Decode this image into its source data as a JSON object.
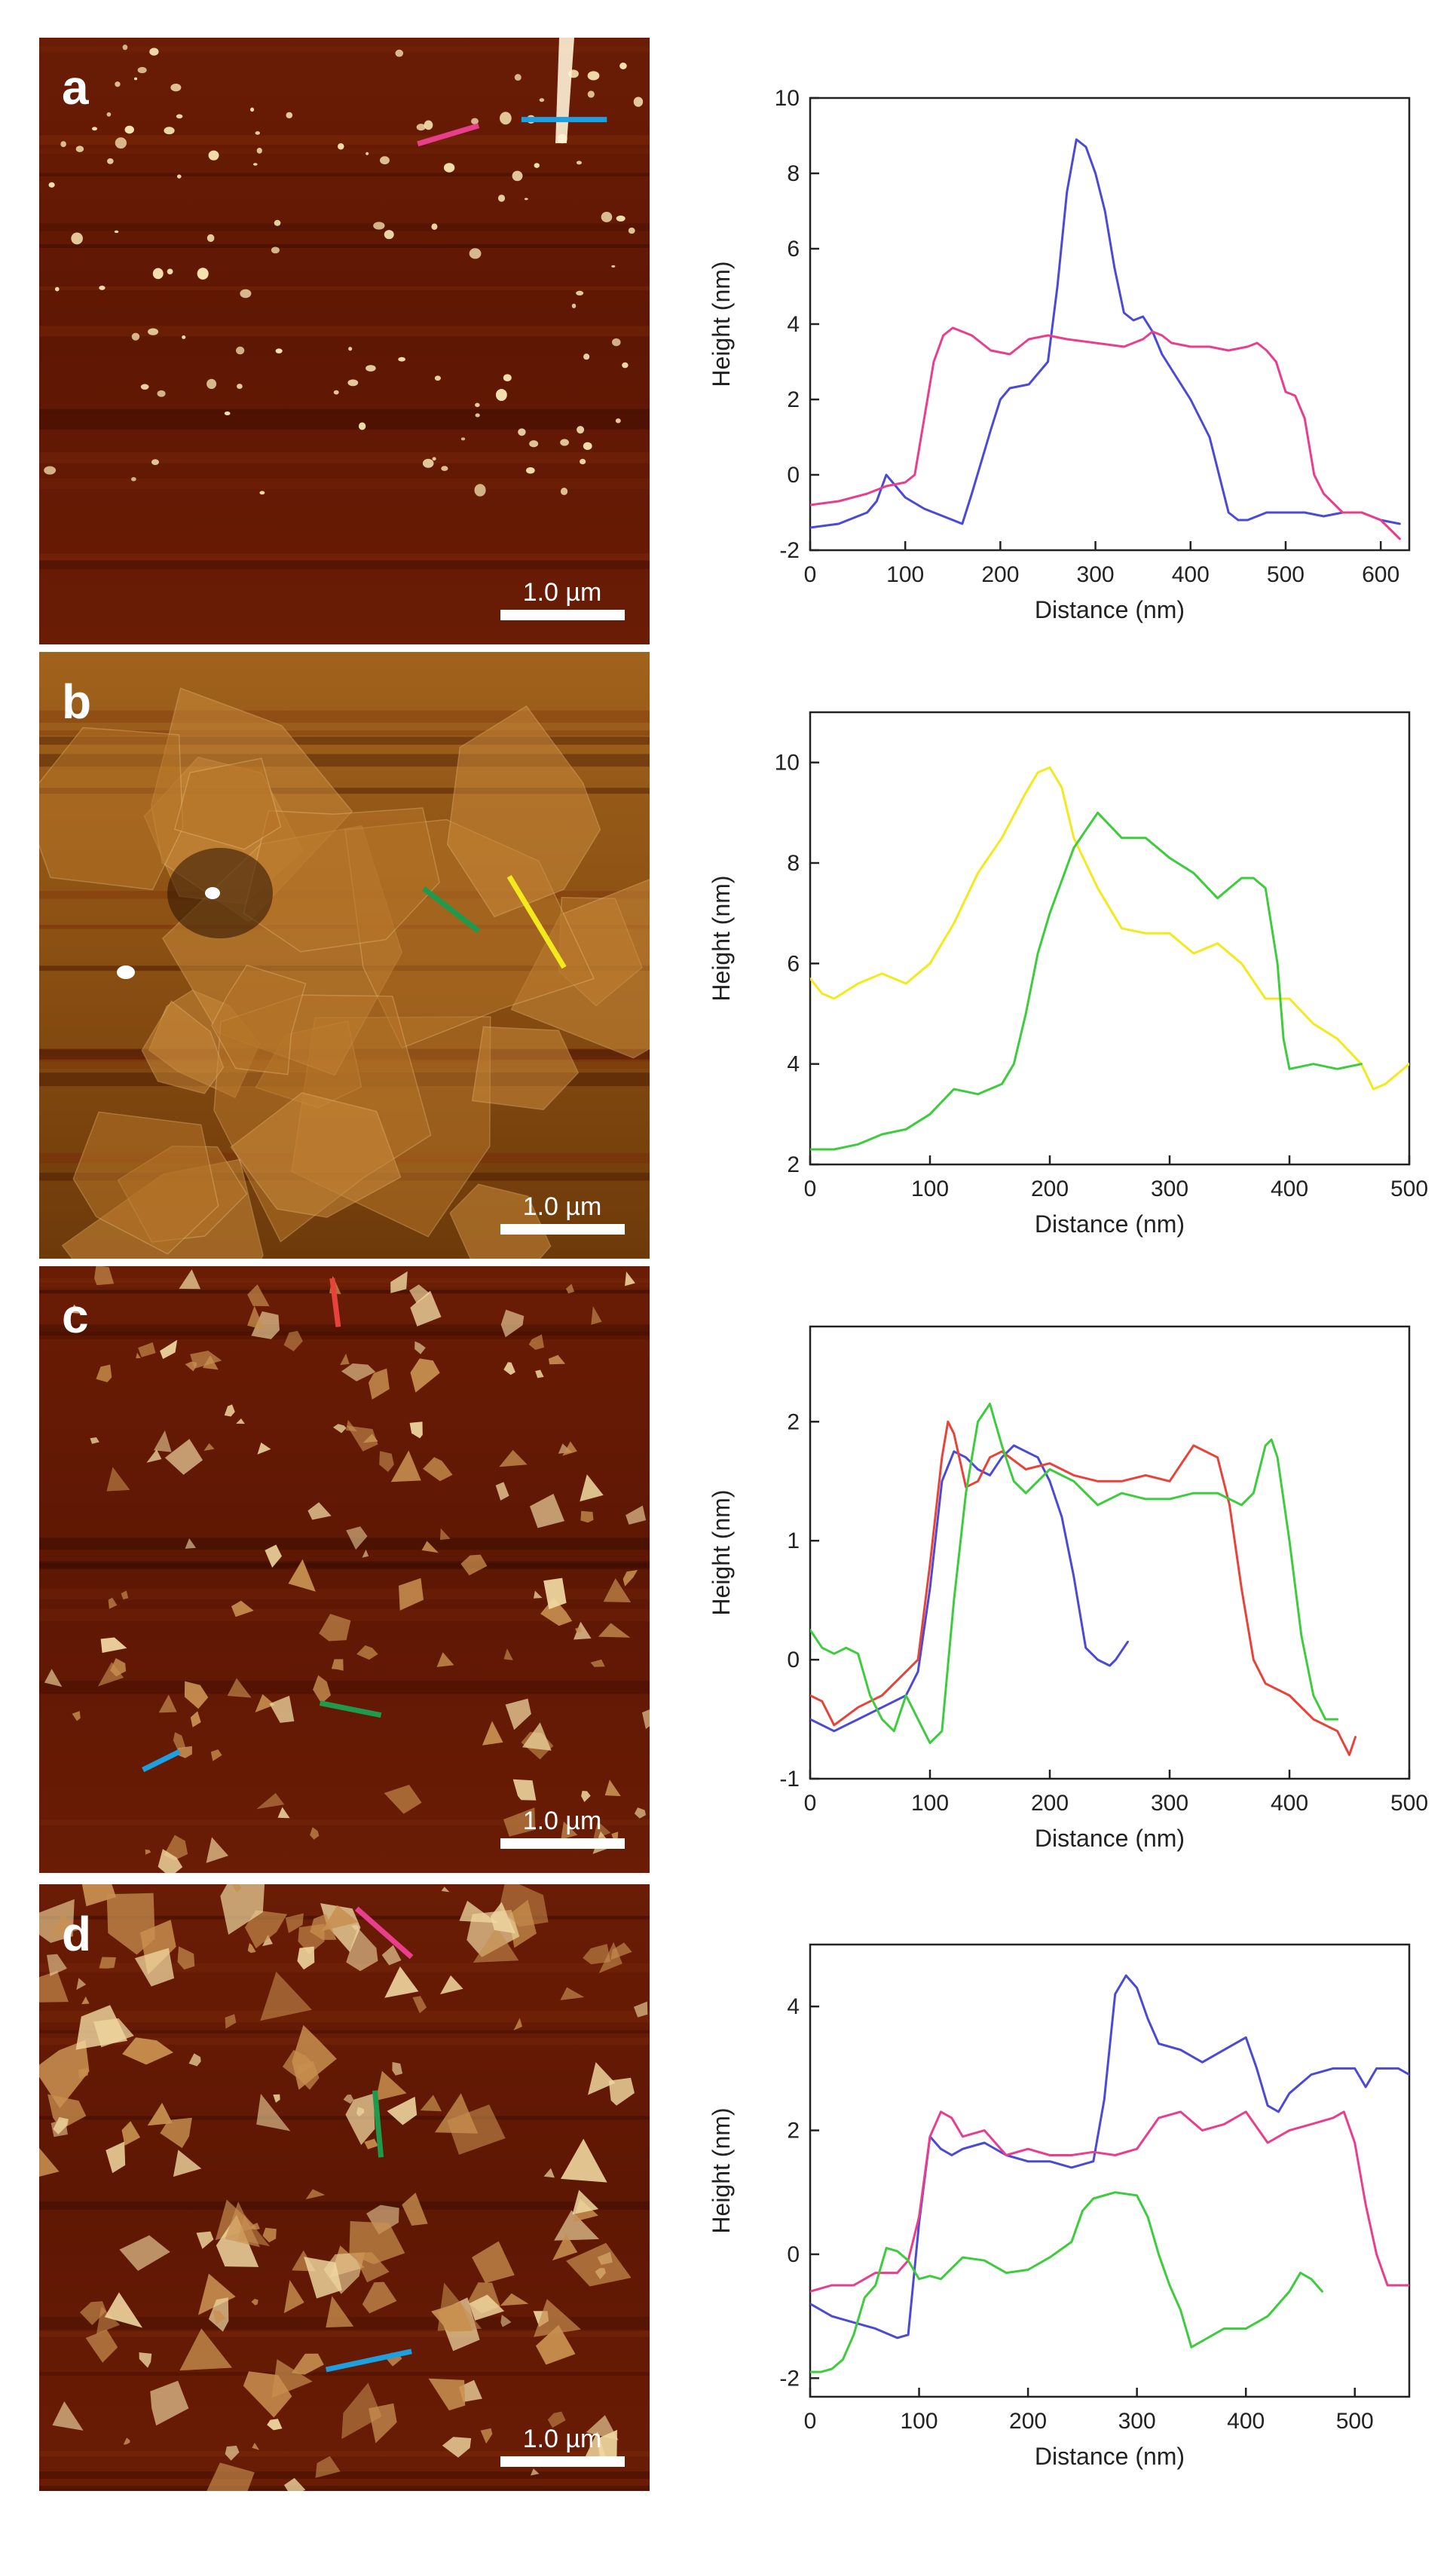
{
  "scale_bar_label": "1.0 µm",
  "colors": {
    "blue": "#4a4ad6",
    "pink": "#e83e8c",
    "yellow": "#f2ea1c",
    "green": "#3dcc3d",
    "red": "#e8433a",
    "marker_cyan": "#1e9fe0",
    "marker_green": "#1f9a4d"
  },
  "chart_data": [
    {
      "type": "line",
      "panel": "a",
      "xlabel": "Distance (nm)",
      "ylabel": "Height (nm)",
      "xlim": [
        0,
        630
      ],
      "ylim": [
        -2,
        10
      ],
      "xticks": [
        0,
        100,
        200,
        300,
        400,
        500,
        600
      ],
      "yticks": [
        -2,
        0,
        2,
        4,
        6,
        8,
        10
      ],
      "series": [
        {
          "color": "#4a4ad6",
          "x": [
            0,
            30,
            60,
            70,
            80,
            90,
            100,
            120,
            140,
            160,
            170,
            190,
            200,
            210,
            230,
            250,
            260,
            270,
            280,
            290,
            300,
            310,
            320,
            330,
            340,
            350,
            360,
            370,
            380,
            400,
            420,
            440,
            450,
            460,
            480,
            500,
            520,
            540,
            560,
            580,
            600,
            620
          ],
          "y": [
            -1.4,
            -1.3,
            -1.0,
            -0.7,
            0.0,
            -0.3,
            -0.6,
            -0.9,
            -1.1,
            -1.3,
            -0.5,
            1.2,
            2.0,
            2.3,
            2.4,
            3.0,
            5.0,
            7.5,
            8.9,
            8.7,
            8.0,
            7.0,
            5.5,
            4.3,
            4.1,
            4.2,
            3.8,
            3.2,
            2.8,
            2.0,
            1.0,
            -1.0,
            -1.2,
            -1.2,
            -1.0,
            -1.0,
            -1.0,
            -1.1,
            -1.0,
            -1.0,
            -1.2,
            -1.3
          ]
        },
        {
          "color": "#e83e8c",
          "x": [
            0,
            30,
            60,
            80,
            100,
            110,
            120,
            130,
            140,
            150,
            170,
            190,
            210,
            230,
            250,
            270,
            300,
            330,
            350,
            360,
            370,
            380,
            400,
            420,
            440,
            460,
            470,
            480,
            490,
            500,
            510,
            520,
            530,
            540,
            560,
            580,
            600,
            620
          ],
          "y": [
            -0.8,
            -0.7,
            -0.5,
            -0.3,
            -0.2,
            0.0,
            1.5,
            3.0,
            3.7,
            3.9,
            3.7,
            3.3,
            3.2,
            3.6,
            3.7,
            3.6,
            3.5,
            3.4,
            3.6,
            3.8,
            3.7,
            3.5,
            3.4,
            3.4,
            3.3,
            3.4,
            3.5,
            3.3,
            3.0,
            2.2,
            2.1,
            1.5,
            0.0,
            -0.5,
            -1.0,
            -1.0,
            -1.2,
            -1.7
          ]
        }
      ]
    },
    {
      "type": "line",
      "panel": "b",
      "xlabel": "Distance (nm)",
      "ylabel": "Height (nm)",
      "xlim": [
        0,
        500
      ],
      "ylim": [
        2,
        11
      ],
      "xticks": [
        0,
        100,
        200,
        300,
        400,
        500
      ],
      "yticks": [
        2,
        4,
        6,
        8,
        10
      ],
      "series": [
        {
          "color": "#f2ea1c",
          "x": [
            0,
            10,
            20,
            40,
            60,
            80,
            100,
            120,
            140,
            160,
            180,
            190,
            200,
            210,
            220,
            240,
            260,
            280,
            300,
            320,
            340,
            360,
            380,
            400,
            420,
            440,
            460,
            470,
            480,
            500
          ],
          "y": [
            5.7,
            5.4,
            5.3,
            5.6,
            5.8,
            5.6,
            6.0,
            6.8,
            7.8,
            8.5,
            9.4,
            9.8,
            9.9,
            9.5,
            8.5,
            7.5,
            6.7,
            6.6,
            6.6,
            6.2,
            6.4,
            6.0,
            5.3,
            5.3,
            4.8,
            4.5,
            4.0,
            3.5,
            3.6,
            4.0
          ]
        },
        {
          "color": "#3dcc3d",
          "x": [
            0,
            20,
            40,
            60,
            80,
            100,
            120,
            140,
            160,
            170,
            180,
            190,
            200,
            220,
            240,
            260,
            280,
            300,
            320,
            340,
            360,
            370,
            380,
            390,
            395,
            400,
            420,
            440,
            460
          ],
          "y": [
            2.3,
            2.3,
            2.4,
            2.6,
            2.7,
            3.0,
            3.5,
            3.4,
            3.6,
            4.0,
            5.0,
            6.2,
            7.0,
            8.3,
            9.0,
            8.5,
            8.5,
            8.1,
            7.8,
            7.3,
            7.7,
            7.7,
            7.5,
            6.0,
            4.5,
            3.9,
            4.0,
            3.9,
            4.0
          ]
        }
      ]
    },
    {
      "type": "line",
      "panel": "c",
      "xlabel": "Distance (nm)",
      "ylabel": "Height (nm)",
      "xlim": [
        0,
        500
      ],
      "ylim": [
        -1,
        2.8
      ],
      "xticks": [
        0,
        100,
        200,
        300,
        400,
        500
      ],
      "yticks": [
        -1,
        0,
        1,
        2
      ],
      "series": [
        {
          "color": "#4a4ad6",
          "x": [
            0,
            20,
            40,
            60,
            80,
            90,
            100,
            110,
            120,
            130,
            140,
            150,
            160,
            170,
            180,
            190,
            200,
            210,
            220,
            230,
            240,
            250,
            255,
            265
          ],
          "y": [
            -0.5,
            -0.6,
            -0.5,
            -0.4,
            -0.3,
            -0.1,
            0.6,
            1.5,
            1.75,
            1.7,
            1.6,
            1.55,
            1.7,
            1.8,
            1.75,
            1.7,
            1.5,
            1.2,
            0.7,
            0.1,
            0.0,
            -0.05,
            0.0,
            0.15
          ]
        },
        {
          "color": "#e8433a",
          "x": [
            0,
            10,
            20,
            40,
            60,
            80,
            90,
            100,
            110,
            115,
            120,
            130,
            140,
            150,
            160,
            180,
            200,
            220,
            240,
            260,
            280,
            300,
            320,
            340,
            350,
            360,
            370,
            380,
            400,
            420,
            440,
            450,
            455
          ],
          "y": [
            -0.3,
            -0.35,
            -0.55,
            -0.4,
            -0.3,
            -0.1,
            0.0,
            0.8,
            1.7,
            2.0,
            1.9,
            1.45,
            1.5,
            1.7,
            1.75,
            1.6,
            1.65,
            1.55,
            1.5,
            1.5,
            1.55,
            1.5,
            1.8,
            1.7,
            1.3,
            0.6,
            0.0,
            -0.2,
            -0.3,
            -0.5,
            -0.6,
            -0.8,
            -0.65
          ]
        },
        {
          "color": "#3dcc3d",
          "x": [
            0,
            10,
            20,
            30,
            40,
            50,
            60,
            70,
            80,
            90,
            100,
            110,
            120,
            130,
            140,
            150,
            160,
            170,
            180,
            200,
            220,
            240,
            260,
            280,
            300,
            320,
            340,
            360,
            370,
            380,
            385,
            390,
            400,
            410,
            420,
            430,
            440
          ],
          "y": [
            0.25,
            0.1,
            0.05,
            0.1,
            0.05,
            -0.3,
            -0.5,
            -0.6,
            -0.3,
            -0.5,
            -0.7,
            -0.6,
            0.5,
            1.4,
            2.0,
            2.15,
            1.8,
            1.5,
            1.4,
            1.6,
            1.5,
            1.3,
            1.4,
            1.35,
            1.35,
            1.4,
            1.4,
            1.3,
            1.4,
            1.8,
            1.85,
            1.7,
            1.0,
            0.2,
            -0.3,
            -0.5,
            -0.5
          ]
        }
      ]
    },
    {
      "type": "line",
      "panel": "d",
      "xlabel": "Distance (nm)",
      "ylabel": "Height (nm)",
      "xlim": [
        0,
        550
      ],
      "ylim": [
        -2.3,
        5
      ],
      "xticks": [
        0,
        100,
        200,
        300,
        400,
        500
      ],
      "yticks": [
        -2,
        0,
        2,
        4
      ],
      "series": [
        {
          "color": "#4a4ad6",
          "x": [
            0,
            20,
            40,
            60,
            80,
            90,
            100,
            110,
            120,
            130,
            140,
            160,
            180,
            200,
            220,
            240,
            260,
            270,
            280,
            290,
            300,
            310,
            320,
            340,
            360,
            380,
            400,
            410,
            420,
            430,
            440,
            460,
            480,
            500,
            510,
            520,
            540,
            550
          ],
          "y": [
            -0.8,
            -1.0,
            -1.1,
            -1.2,
            -1.35,
            -1.3,
            0.5,
            1.9,
            1.7,
            1.6,
            1.7,
            1.8,
            1.6,
            1.5,
            1.5,
            1.4,
            1.5,
            2.5,
            4.2,
            4.5,
            4.3,
            3.8,
            3.4,
            3.3,
            3.1,
            3.3,
            3.5,
            3.0,
            2.4,
            2.3,
            2.6,
            2.9,
            3.0,
            3.0,
            2.7,
            3.0,
            3.0,
            2.9
          ]
        },
        {
          "color": "#e83e8c",
          "x": [
            0,
            20,
            40,
            60,
            80,
            90,
            100,
            110,
            120,
            130,
            140,
            160,
            180,
            200,
            220,
            240,
            260,
            280,
            300,
            320,
            340,
            360,
            380,
            400,
            420,
            440,
            460,
            480,
            490,
            500,
            510,
            520,
            530,
            540,
            550
          ],
          "y": [
            -0.6,
            -0.5,
            -0.5,
            -0.3,
            -0.3,
            -0.1,
            0.6,
            1.9,
            2.3,
            2.2,
            1.9,
            2.0,
            1.6,
            1.7,
            1.6,
            1.6,
            1.65,
            1.6,
            1.7,
            2.2,
            2.3,
            2.0,
            2.1,
            2.3,
            1.8,
            2.0,
            2.1,
            2.2,
            2.3,
            1.8,
            0.8,
            0.0,
            -0.5,
            -0.5,
            -0.5
          ]
        },
        {
          "color": "#3dcc3d",
          "x": [
            0,
            10,
            20,
            30,
            40,
            50,
            60,
            70,
            80,
            90,
            100,
            110,
            120,
            140,
            160,
            180,
            200,
            220,
            240,
            250,
            260,
            280,
            300,
            310,
            320,
            330,
            340,
            350,
            360,
            380,
            400,
            420,
            440,
            450,
            460,
            470
          ],
          "y": [
            -1.9,
            -1.9,
            -1.85,
            -1.7,
            -1.3,
            -0.7,
            -0.5,
            0.1,
            0.05,
            -0.1,
            -0.4,
            -0.35,
            -0.4,
            -0.05,
            -0.1,
            -0.3,
            -0.25,
            -0.05,
            0.2,
            0.7,
            0.9,
            1.0,
            0.95,
            0.6,
            0.0,
            -0.5,
            -0.9,
            -1.5,
            -1.4,
            -1.2,
            -1.2,
            -1.0,
            -0.6,
            -0.3,
            -0.4,
            -0.6
          ]
        }
      ]
    }
  ],
  "afm_panels": [
    {
      "letter": "a",
      "style": "sparse",
      "markers": [
        {
          "color": "#e83e8c",
          "x1": 0.62,
          "y1": 0.175,
          "x2": 0.72,
          "y2": 0.145
        },
        {
          "color": "#1e9fe0",
          "x1": 0.79,
          "y1": 0.135,
          "x2": 0.93,
          "y2": 0.135
        }
      ]
    },
    {
      "letter": "b",
      "style": "sheets",
      "markers": [
        {
          "color": "#1f9a4d",
          "x1": 0.63,
          "y1": 0.39,
          "x2": 0.72,
          "y2": 0.46
        },
        {
          "color": "#f2ea1c",
          "x1": 0.77,
          "y1": 0.37,
          "x2": 0.86,
          "y2": 0.52
        }
      ]
    },
    {
      "letter": "c",
      "style": "flakes",
      "markers": [
        {
          "color": "#e8433a",
          "x1": 0.49,
          "y1": 0.1,
          "x2": 0.48,
          "y2": 0.02
        },
        {
          "color": "#1f9a4d",
          "x1": 0.46,
          "y1": 0.72,
          "x2": 0.56,
          "y2": 0.74
        },
        {
          "color": "#1e9fe0",
          "x1": 0.17,
          "y1": 0.83,
          "x2": 0.23,
          "y2": 0.8
        }
      ]
    },
    {
      "letter": "d",
      "style": "dense",
      "markers": [
        {
          "color": "#e83e8c",
          "x1": 0.52,
          "y1": 0.04,
          "x2": 0.61,
          "y2": 0.12
        },
        {
          "color": "#1f9a4d",
          "x1": 0.55,
          "y1": 0.34,
          "x2": 0.56,
          "y2": 0.45
        },
        {
          "color": "#1e9fe0",
          "x1": 0.47,
          "y1": 0.8,
          "x2": 0.61,
          "y2": 0.77
        }
      ]
    }
  ]
}
